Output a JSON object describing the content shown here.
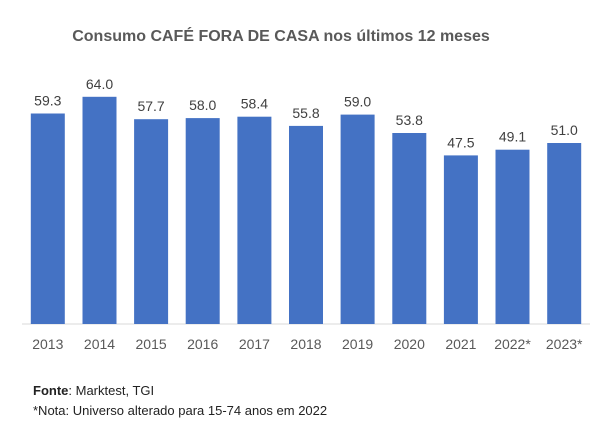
{
  "chart_data": {
    "type": "bar",
    "title": "Consumo CAFÉ FORA DE CASA nos últimos 12 meses",
    "categories": [
      "2013",
      "2014",
      "2015",
      "2016",
      "2017",
      "2018",
      "2019",
      "2020",
      "2021",
      "2022*",
      "2023*"
    ],
    "values": [
      59.3,
      64.0,
      57.7,
      58.0,
      58.4,
      55.8,
      59.0,
      53.8,
      47.5,
      49.1,
      51.0
    ],
    "data_labels": [
      "59.3",
      "64.0",
      "57.7",
      "58.0",
      "58.4",
      "55.8",
      "59.0",
      "53.8",
      "47.5",
      "49.1",
      "51.0"
    ],
    "xlabel": "",
    "ylabel": "",
    "ylim": [
      0,
      70
    ],
    "grid": false,
    "bar_color": "#4472C4"
  },
  "footer": {
    "source_label": "Fonte",
    "source_text": ": Marktest, TGI",
    "note_text": "*Nota: Universo alterado para 15-74 anos em 2022"
  }
}
